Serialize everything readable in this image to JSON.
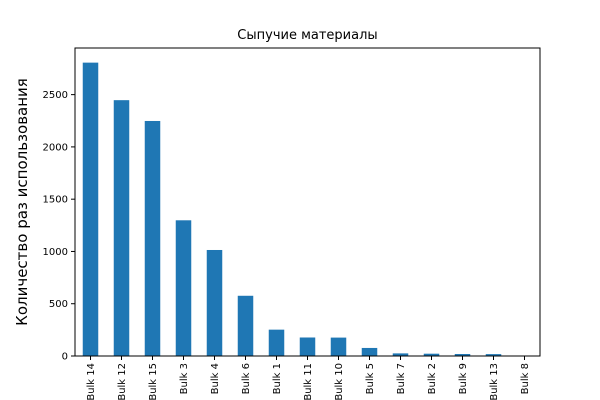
{
  "chart_data": {
    "type": "bar",
    "title": "Сыпучие материалы",
    "xlabel": "",
    "ylabel": "Количество раз использования",
    "categories": [
      "Bulk 14",
      "Bulk 12",
      "Bulk 15",
      "Bulk 3",
      "Bulk 4",
      "Bulk 6",
      "Bulk 1",
      "Bulk 11",
      "Bulk 10",
      "Bulk 5",
      "Bulk 7",
      "Bulk 2",
      "Bulk 9",
      "Bulk 13",
      "Bulk 8"
    ],
    "values": [
      2806,
      2447,
      2248,
      1298,
      1014,
      576,
      252,
      177,
      176,
      77,
      25,
      22,
      19,
      18,
      1
    ],
    "ylim": [
      0,
      2946
    ],
    "yticks": [
      0,
      500,
      1000,
      1500,
      2000,
      2500
    ],
    "grid": false,
    "color": "#1f77b4"
  }
}
